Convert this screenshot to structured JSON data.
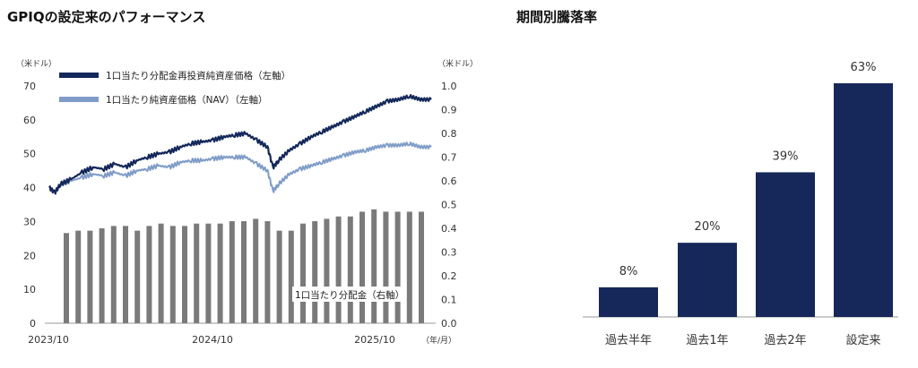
{
  "left_title": "GPIQの設定来のパフォーマンス",
  "right_title": "期間別騰落率",
  "colors": {
    "navy": "#13285a",
    "light_blue": "#7f9cc8",
    "gray_bar": "#7a7a7a",
    "right_bar": "#16285a"
  },
  "chart_data": [
    {
      "type": "line",
      "left_unit": "（米ドル）",
      "right_unit": "（米ドル）",
      "x_unit": "（年/月）",
      "x_tick_labels": [
        "2023/10",
        "2024/10",
        "2025/10"
      ],
      "y_left_ticks": [
        "0",
        "10",
        "20",
        "30",
        "40",
        "50",
        "60",
        "70"
      ],
      "y_right_ticks": [
        "0.0",
        "0.1",
        "0.2",
        "0.3",
        "0.4",
        "0.5",
        "0.6",
        "0.7",
        "0.8",
        "0.9",
        "1.0"
      ],
      "ylim_left": [
        0,
        70
      ],
      "ylim_right": [
        0,
        1.0
      ],
      "grid": false,
      "legend_position": "top-left",
      "annotation": "1口当たり分配金（右軸）",
      "series": [
        {
          "name": "1口当たり分配金再投資純資産価格（左軸）",
          "axis": "left",
          "kind": "line",
          "points": [
            [
              0,
              40
            ],
            [
              0.5,
              38.5
            ],
            [
              1,
              41
            ],
            [
              2,
              42.5
            ],
            [
              3,
              44.5
            ],
            [
              4,
              46
            ],
            [
              5,
              45.5
            ],
            [
              6,
              47
            ],
            [
              7,
              46
            ],
            [
              8,
              48
            ],
            [
              9,
              49
            ],
            [
              10,
              50
            ],
            [
              11,
              50.5
            ],
            [
              12,
              52
            ],
            [
              13,
              53
            ],
            [
              14,
              53.5
            ],
            [
              15,
              54
            ],
            [
              16,
              55
            ],
            [
              17,
              55.5
            ],
            [
              18,
              56
            ],
            [
              19,
              54
            ],
            [
              20,
              52
            ],
            [
              20.5,
              46
            ],
            [
              21,
              48
            ],
            [
              22,
              51
            ],
            [
              23,
              53
            ],
            [
              24,
              55
            ],
            [
              25,
              56.5
            ],
            [
              26,
              58
            ],
            [
              27,
              59.5
            ],
            [
              28,
              61
            ],
            [
              29,
              62.5
            ],
            [
              30,
              64
            ],
            [
              31,
              65.5
            ],
            [
              32,
              66
            ],
            [
              33,
              67
            ],
            [
              34,
              66
            ],
            [
              35,
              66
            ]
          ]
        },
        {
          "name": "1口当たり純資産価格（NAV）（左軸）",
          "axis": "left",
          "kind": "line",
          "points": [
            [
              0,
              40
            ],
            [
              0.5,
              38.5
            ],
            [
              1,
              41
            ],
            [
              2,
              42
            ],
            [
              3,
              43
            ],
            [
              4,
              44
            ],
            [
              5,
              43.5
            ],
            [
              6,
              44.5
            ],
            [
              7,
              43.5
            ],
            [
              8,
              45
            ],
            [
              9,
              45.5
            ],
            [
              10,
              46.5
            ],
            [
              11,
              46
            ],
            [
              12,
              47.5
            ],
            [
              13,
              48
            ],
            [
              14,
              48
            ],
            [
              15,
              48.5
            ],
            [
              16,
              49
            ],
            [
              17,
              49
            ],
            [
              18,
              49
            ],
            [
              19,
              47
            ],
            [
              20,
              45
            ],
            [
              20.5,
              39
            ],
            [
              21,
              41
            ],
            [
              22,
              44
            ],
            [
              23,
              45.5
            ],
            [
              24,
              46.5
            ],
            [
              25,
              47.5
            ],
            [
              26,
              48.5
            ],
            [
              27,
              49.5
            ],
            [
              28,
              50.5
            ],
            [
              29,
              51
            ],
            [
              30,
              52
            ],
            [
              31,
              52.5
            ],
            [
              32,
              52.5
            ],
            [
              33,
              53
            ],
            [
              34,
              52
            ],
            [
              35,
              52
            ]
          ]
        },
        {
          "name": "1口当たり分配金（右軸）",
          "axis": "right",
          "kind": "bar",
          "values": [
            0.38,
            0.39,
            0.39,
            0.4,
            0.41,
            0.41,
            0.39,
            0.41,
            0.42,
            0.41,
            0.41,
            0.42,
            0.42,
            0.42,
            0.43,
            0.43,
            0.44,
            0.43,
            0.39,
            0.39,
            0.42,
            0.43,
            0.44,
            0.45,
            0.45,
            0.47,
            0.48,
            0.47,
            0.47,
            0.47,
            0.47
          ]
        }
      ]
    },
    {
      "type": "bar",
      "categories": [
        "過去半年",
        "過去1年",
        "過去2年",
        "設定来"
      ],
      "values": [
        8,
        20,
        39,
        63
      ],
      "value_labels": [
        "8%",
        "20%",
        "39%",
        "63%"
      ],
      "ylim": [
        0,
        70
      ],
      "grid": false
    }
  ]
}
